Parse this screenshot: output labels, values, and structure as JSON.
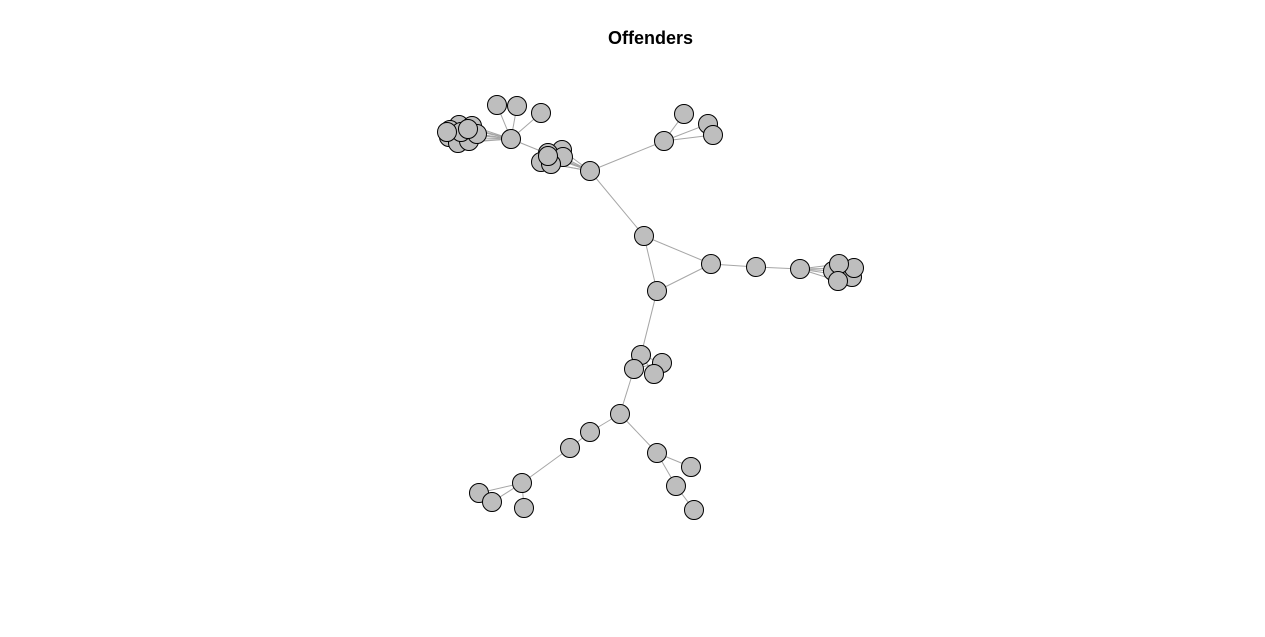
{
  "title": "Offenders",
  "colors": {
    "background": "#ffffff",
    "node_fill": "#bebebe",
    "node_stroke": "#000000",
    "edge": "#a6a6a6"
  },
  "network": {
    "node_count": 61,
    "edges": [
      [
        "n1",
        "n2"
      ],
      [
        "n2",
        "n3"
      ],
      [
        "n3",
        "n1"
      ],
      [
        "n1",
        "n4"
      ],
      [
        "n4",
        "n5"
      ],
      [
        "n5",
        "n6"
      ],
      [
        "n5",
        "n7"
      ],
      [
        "n5",
        "n8"
      ],
      [
        "n5",
        "n9"
      ],
      [
        "n5",
        "n10"
      ],
      [
        "n5",
        "n11"
      ],
      [
        "n5",
        "n12"
      ],
      [
        "n5",
        "n13"
      ],
      [
        "n5",
        "n14"
      ],
      [
        "n5",
        "n15"
      ],
      [
        "n5",
        "n16"
      ],
      [
        "n5",
        "n17"
      ],
      [
        "n5",
        "n18"
      ],
      [
        "n4",
        "n19"
      ],
      [
        "n4",
        "n20"
      ],
      [
        "n4",
        "n21"
      ],
      [
        "n4",
        "n22"
      ],
      [
        "n4",
        "n23"
      ],
      [
        "n4",
        "n24"
      ],
      [
        "n4",
        "n25"
      ],
      [
        "n25",
        "n26"
      ],
      [
        "n25",
        "n27"
      ],
      [
        "n25",
        "n28"
      ],
      [
        "n2",
        "n29"
      ],
      [
        "n29",
        "n30"
      ],
      [
        "n30",
        "n31"
      ],
      [
        "n30",
        "n32"
      ],
      [
        "n30",
        "n33"
      ],
      [
        "n30",
        "n34"
      ],
      [
        "n30",
        "n35"
      ],
      [
        "n3",
        "n36"
      ],
      [
        "n36",
        "n37"
      ],
      [
        "n36",
        "n38"
      ],
      [
        "n36",
        "n39"
      ],
      [
        "n38",
        "n40"
      ],
      [
        "n38",
        "n41"
      ],
      [
        "n38",
        "n42"
      ],
      [
        "n38",
        "n43"
      ],
      [
        "n40",
        "n44"
      ],
      [
        "n44",
        "n45"
      ],
      [
        "n45",
        "n46"
      ],
      [
        "n46",
        "n47"
      ],
      [
        "n46",
        "n48"
      ],
      [
        "n46",
        "n49"
      ],
      [
        "n40",
        "n50"
      ],
      [
        "n50",
        "n51"
      ],
      [
        "n50",
        "n52"
      ],
      [
        "n52",
        "n53"
      ]
    ]
  }
}
